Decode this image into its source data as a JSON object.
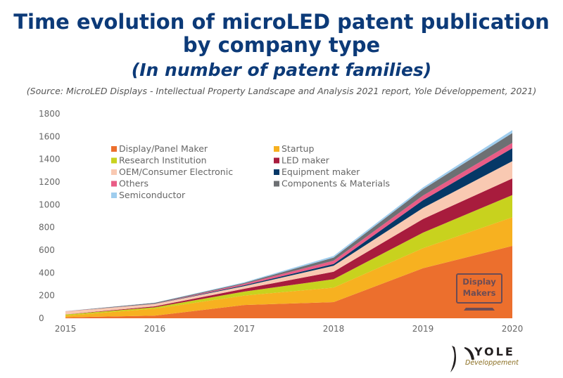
{
  "chart_data": {
    "type": "area",
    "stacked": true,
    "title": "Time evolution of microLED patent publication",
    "title_line2": "by company type",
    "subtitle": "(In number of patent families)",
    "source": "(Source: MicroLED Displays - Intellectual Property Landscape and Analysis 2021 report, Yole Développement, 2021)",
    "x": [
      "2015",
      "2016",
      "2017",
      "2018",
      "2019",
      "2020"
    ],
    "ylim": [
      0,
      1800
    ],
    "yticks": [
      "0",
      "200",
      "400",
      "600",
      "800",
      "1000",
      "1200",
      "1400",
      "1600",
      "1800"
    ],
    "grid": false,
    "legend_position": "top-left",
    "series": [
      {
        "name": "Display/Panel Maker",
        "color": "#ec6f2d",
        "values": [
          8,
          23,
          117,
          142,
          441,
          637
        ]
      },
      {
        "name": "Startup",
        "color": "#f7b120",
        "values": [
          15,
          62,
          83,
          128,
          176,
          252
        ]
      },
      {
        "name": "Research Institution",
        "color": "#c8d21e",
        "values": [
          10,
          12,
          35,
          74,
          137,
          196
        ]
      },
      {
        "name": "LED maker",
        "color": "#a81c3d",
        "values": [
          1,
          8,
          25,
          66,
          120,
          146
        ]
      },
      {
        "name": "OEM/Consumer Electronic",
        "color": "#f9c9b2",
        "values": [
          26,
          21,
          23,
          52,
          97,
          152
        ]
      },
      {
        "name": "Equipment maker",
        "color": "#053867",
        "values": [
          0,
          1,
          8,
          16,
          68,
          114
        ]
      },
      {
        "name": "Others",
        "color": "#e95c86",
        "values": [
          1,
          1,
          12,
          29,
          41,
          47
        ]
      },
      {
        "name": "Components & Materials",
        "color": "#6d7073",
        "values": [
          1,
          8,
          8,
          27,
          56,
          87
        ]
      },
      {
        "name": "Semiconductor",
        "color": "#9fcdee",
        "values": [
          1,
          2,
          6,
          15,
          16,
          26
        ]
      }
    ],
    "legend_order": [
      0,
      1,
      2,
      3,
      4,
      5,
      6,
      7,
      8
    ],
    "annotation": {
      "line1": "Display",
      "line2": "Makers",
      "icon": "monitor-icon",
      "color": "#6b4c55"
    }
  },
  "logo": {
    "name": "YOLE",
    "tagline": "Développement",
    "color": "#231f20",
    "tagline_color": "#8a6d1f"
  }
}
